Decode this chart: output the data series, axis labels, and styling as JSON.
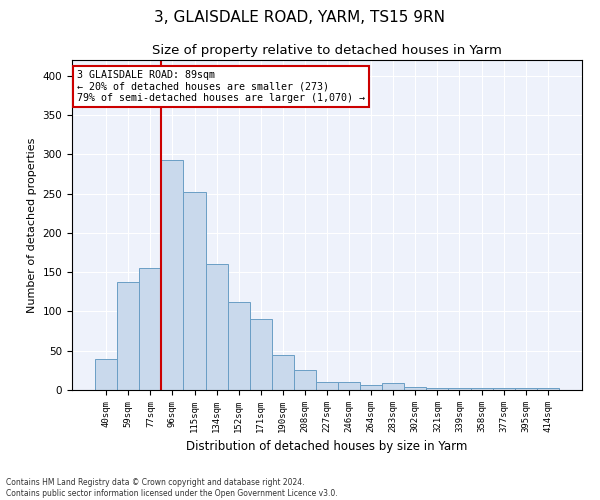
{
  "title": "3, GLAISDALE ROAD, YARM, TS15 9RN",
  "subtitle": "Size of property relative to detached houses in Yarm",
  "xlabel": "Distribution of detached houses by size in Yarm",
  "ylabel": "Number of detached properties",
  "categories": [
    "40sqm",
    "59sqm",
    "77sqm",
    "96sqm",
    "115sqm",
    "134sqm",
    "152sqm",
    "171sqm",
    "190sqm",
    "208sqm",
    "227sqm",
    "246sqm",
    "264sqm",
    "283sqm",
    "302sqm",
    "321sqm",
    "339sqm",
    "358sqm",
    "377sqm",
    "395sqm",
    "414sqm"
  ],
  "values": [
    40,
    138,
    155,
    293,
    252,
    160,
    112,
    90,
    45,
    25,
    10,
    10,
    6,
    9,
    4,
    3,
    3,
    2,
    2,
    3,
    2
  ],
  "bar_color": "#c9d9ec",
  "bar_edge_color": "#6a9ec5",
  "vline_x": 2.5,
  "vline_color": "#cc0000",
  "ylim": [
    0,
    420
  ],
  "yticks": [
    0,
    50,
    100,
    150,
    200,
    250,
    300,
    350,
    400
  ],
  "annotation_title": "3 GLAISDALE ROAD: 89sqm",
  "annotation_line1": "← 20% of detached houses are smaller (273)",
  "annotation_line2": "79% of semi-detached houses are larger (1,070) →",
  "annotation_box_color": "#ffffff",
  "annotation_box_edge": "#cc0000",
  "footer1": "Contains HM Land Registry data © Crown copyright and database right 2024.",
  "footer2": "Contains public sector information licensed under the Open Government Licence v3.0.",
  "background_color": "#eef2fb",
  "title_fontsize": 11,
  "subtitle_fontsize": 9.5,
  "xlabel_fontsize": 8.5,
  "ylabel_fontsize": 8
}
